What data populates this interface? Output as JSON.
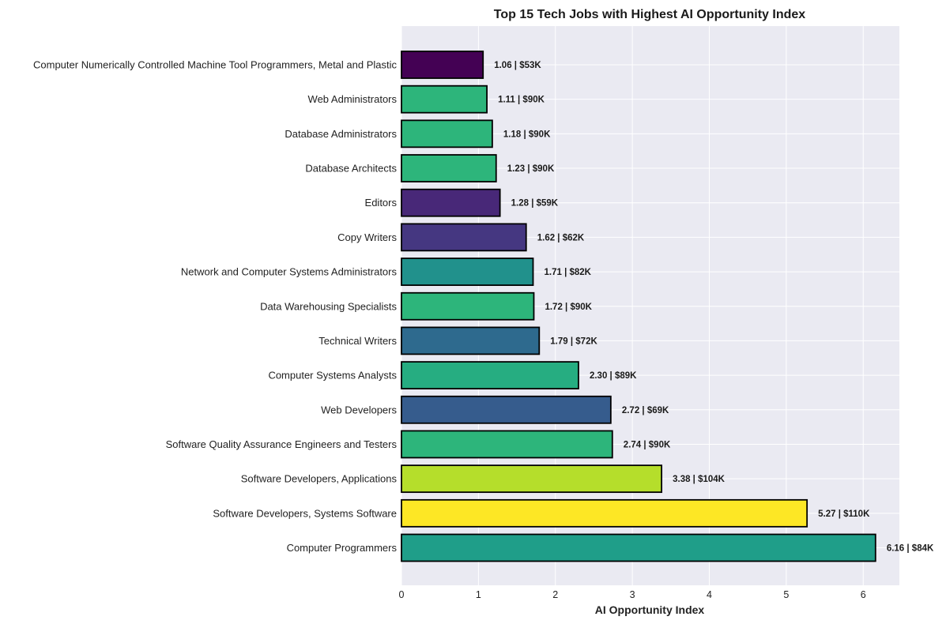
{
  "chart_data": {
    "type": "bar",
    "orientation": "horizontal",
    "title": "Top 15 Tech Jobs with Highest AI Opportunity Index",
    "xlabel": "AI Opportunity Index",
    "ylabel": "",
    "xlim": [
      0,
      6.47
    ],
    "xticks": [
      0,
      1,
      2,
      3,
      4,
      5,
      6
    ],
    "grid": true,
    "background": "#eaeaf2",
    "categories": [
      "Computer Numerically Controlled Machine Tool Programmers, Metal and Plastic",
      "Web Administrators",
      "Database Administrators",
      "Database Architects",
      "Editors",
      "Copy Writers",
      "Network and Computer Systems Administrators",
      "Data Warehousing Specialists",
      "Technical Writers",
      "Computer Systems Analysts",
      "Web Developers",
      "Software Quality Assurance Engineers and Testers",
      "Software Developers, Applications",
      "Software Developers, Systems Software",
      "Computer Programmers"
    ],
    "values": [
      1.06,
      1.11,
      1.18,
      1.23,
      1.28,
      1.62,
      1.71,
      1.72,
      1.79,
      2.3,
      2.72,
      2.74,
      3.38,
      5.27,
      6.16
    ],
    "bar_labels": [
      "1.06 | $53K",
      "1.11 | $90K",
      "1.18 | $90K",
      "1.23 | $90K",
      "1.28 | $59K",
      "1.62 | $62K",
      "1.71 | $82K",
      "1.72 | $90K",
      "1.79 | $72K",
      "2.30 | $89K",
      "2.72 | $69K",
      "2.74 | $90K",
      "3.38 | $104K",
      "5.27 | $110K",
      "6.16 | $84K"
    ],
    "colors": [
      "#440154",
      "#2db57b",
      "#2db57b",
      "#2db57b",
      "#482878",
      "#453781",
      "#21918c",
      "#2db57b",
      "#2e6a8e",
      "#26ad81",
      "#365c8d",
      "#2db57b",
      "#b5de2b",
      "#fde725",
      "#1f9e89"
    ]
  }
}
